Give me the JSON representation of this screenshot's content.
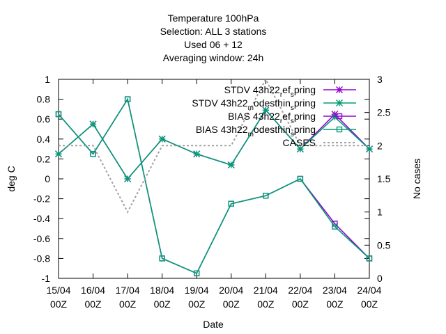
{
  "chart_data": {
    "type": "line",
    "title_lines": [
      "Temperature 100hPa",
      "Selection: ALL       3 stations",
      "Used  06  + 12",
      "Averaging window: 24h"
    ],
    "xlabel": "Date",
    "ylabel": "deg C",
    "y2label": "No cases",
    "categories": [
      [
        "15/04",
        "00Z"
      ],
      [
        "16/04",
        "00Z"
      ],
      [
        "17/04",
        "00Z"
      ],
      [
        "18/04",
        "00Z"
      ],
      [
        "19/04",
        "00Z"
      ],
      [
        "20/04",
        "00Z"
      ],
      [
        "21/04",
        "00Z"
      ],
      [
        "22/04",
        "00Z"
      ],
      [
        "23/04",
        "00Z"
      ],
      [
        "24/04",
        "00Z"
      ]
    ],
    "ylim": [
      -1,
      1
    ],
    "yticks": [
      -1,
      -0.8,
      -0.6,
      -0.4,
      -0.2,
      0,
      0.2,
      0.4,
      0.6,
      0.8,
      1
    ],
    "ytick_labels": [
      "-1",
      "-0.8",
      "-0.6",
      "-0.4",
      "-0.2",
      "0",
      "0.2",
      "0.4",
      "0.6",
      "0.8",
      "1"
    ],
    "y2lim": [
      0,
      3
    ],
    "y2ticks": [
      0,
      0.5,
      1,
      1.5,
      2,
      2.5,
      3
    ],
    "y2tick_labels": [
      "0",
      "0.5",
      "1",
      "1.5",
      "2",
      "2.5",
      "3"
    ],
    "legend_position": "top-right",
    "series": [
      {
        "name_parts": [
          [
            "STDV 43h22",
            ""
          ],
          [
            "r",
            "sub"
          ],
          [
            "ef",
            ""
          ],
          [
            "s",
            "sub"
          ],
          [
            "pring",
            ""
          ]
        ],
        "axis": "y1",
        "color": "#9400d3",
        "marker": "star",
        "values": [
          0.25,
          0.55,
          0.0,
          0.4,
          0.25,
          0.14,
          0.69,
          0.3,
          0.65,
          0.3
        ]
      },
      {
        "name_parts": [
          [
            "STDV 43h22",
            ""
          ],
          [
            "m",
            "sub"
          ],
          [
            "odesthin",
            ""
          ],
          [
            "s",
            "sub"
          ],
          [
            "pring",
            ""
          ]
        ],
        "axis": "y1",
        "color": "#009e73",
        "marker": "star",
        "values": [
          0.25,
          0.55,
          0.0,
          0.4,
          0.25,
          0.14,
          0.69,
          0.3,
          0.62,
          0.3
        ]
      },
      {
        "name_parts": [
          [
            "BIAS 43h22",
            ""
          ],
          [
            "r",
            "sub"
          ],
          [
            "ef",
            ""
          ],
          [
            "s",
            "sub"
          ],
          [
            "pring",
            ""
          ]
        ],
        "axis": "y1",
        "color": "#9400d3",
        "marker": "square",
        "values": [
          0.65,
          0.25,
          0.8,
          -0.8,
          -0.95,
          -0.25,
          -0.17,
          0.0,
          -0.45,
          -0.8
        ]
      },
      {
        "name_parts": [
          [
            "BIAS 43h22",
            ""
          ],
          [
            "m",
            "sub"
          ],
          [
            "odesthin",
            ""
          ],
          [
            "s",
            "sub"
          ],
          [
            "pring",
            ""
          ]
        ],
        "axis": "y1",
        "color": "#009e73",
        "marker": "square",
        "values": [
          0.65,
          0.25,
          0.8,
          -0.8,
          -0.95,
          -0.25,
          -0.17,
          0.0,
          -0.48,
          -0.8
        ]
      },
      {
        "name_parts": [
          [
            "CASES",
            ""
          ]
        ],
        "axis": "y2",
        "color": "#a0a0a0",
        "marker": "none",
        "dashed": true,
        "values": [
          2,
          2,
          1,
          2,
          2,
          2,
          3,
          2,
          2,
          2
        ]
      }
    ]
  }
}
